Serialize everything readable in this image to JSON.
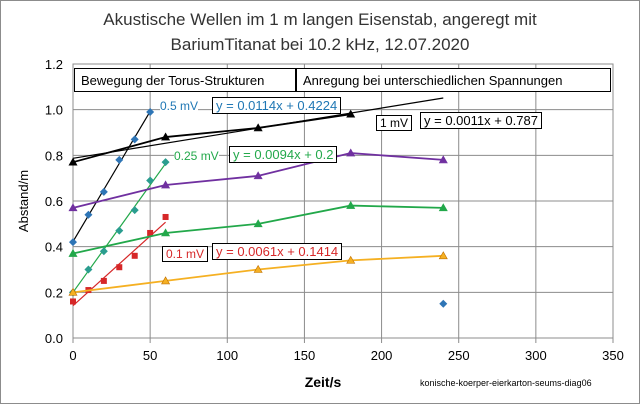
{
  "colors": {
    "mv05": "#1f77b4",
    "mv025": "#2a9d8f",
    "mv01": "#d62728",
    "purple": "#7030a0",
    "green": "#22a84a",
    "orange": "#f5b022",
    "black": "#000000",
    "blue_diamond": "#2e75b6"
  },
  "chart_data": {
    "type": "scatter",
    "title": "Akustische Wellen im 1 m langen  Eisenstab, angeregt mit",
    "subtitle": "BariumTitanat  bei 10.2 kHz, 12.07.2020",
    "xlabel": "Zeit/s",
    "ylabel": "Abstand/m",
    "xlim": [
      0,
      350
    ],
    "ylim": [
      0,
      1.2
    ],
    "xticks": [
      "0",
      "50",
      "100",
      "150",
      "200",
      "250",
      "300",
      "350"
    ],
    "yticks": [
      "0.0",
      "0.2",
      "0.4",
      "0.6",
      "0.8",
      "1.0",
      "1.2"
    ],
    "grid": true,
    "footnote": "konische-koerper-eierkarton-seums-diag06",
    "box_left": "Bewegung der Torus-Strukturen",
    "box_right": "Anregung  bei unterschiedlichen Spannungen",
    "series": [
      {
        "color_key": "blue_diamond",
        "marker": "diamond",
        "x": [
          0,
          10,
          20,
          30,
          40,
          50
        ],
        "y": [
          0.42,
          0.54,
          0.64,
          0.78,
          0.87,
          0.99
        ]
      },
      {
        "color_key": "mv025",
        "marker": "diamond",
        "x": [
          0,
          10,
          20,
          30,
          40,
          50,
          60
        ],
        "y": [
          0.2,
          0.3,
          0.38,
          0.47,
          0.56,
          0.69,
          0.77
        ]
      },
      {
        "color_key": "mv01",
        "marker": "square",
        "x": [
          0,
          10,
          20,
          30,
          40,
          50,
          60
        ],
        "y": [
          0.16,
          0.21,
          0.25,
          0.31,
          0.36,
          0.46,
          0.53
        ]
      },
      {
        "color_key": "black",
        "marker": "triangle",
        "line": true,
        "x": [
          0,
          60,
          120,
          180
        ],
        "y": [
          0.77,
          0.88,
          0.92,
          0.98
        ]
      },
      {
        "color_key": "purple",
        "marker": "triangle",
        "line": true,
        "x": [
          0,
          60,
          120,
          180,
          240
        ],
        "y": [
          0.57,
          0.67,
          0.71,
          0.81,
          0.78
        ]
      },
      {
        "color_key": "green",
        "marker": "triangle",
        "line": true,
        "x": [
          0,
          60,
          120,
          180,
          240
        ],
        "y": [
          0.37,
          0.46,
          0.5,
          0.58,
          0.57
        ]
      },
      {
        "color_key": "orange",
        "marker": "triangle",
        "line": true,
        "x": [
          0,
          60,
          120,
          180,
          240
        ],
        "y": [
          0.2,
          0.25,
          0.3,
          0.34,
          0.36
        ]
      },
      {
        "color_key": "blue_diamond",
        "marker": "diamond",
        "x": [
          240
        ],
        "y": [
          0.15
        ]
      }
    ],
    "fits": [
      {
        "color_key": "black",
        "slope": 0.0114,
        "intercept": 0.4224,
        "x": [
          0,
          50
        ]
      },
      {
        "color_key": "green",
        "slope": 0.0094,
        "intercept": 0.2,
        "x": [
          0,
          60
        ]
      },
      {
        "color_key": "mv01",
        "slope": 0.0061,
        "intercept": 0.1414,
        "x": [
          0,
          60
        ]
      },
      {
        "color_key": "black",
        "slope": 0.0011,
        "intercept": 0.787,
        "x": [
          0,
          240
        ]
      }
    ],
    "annotations": [
      {
        "key": "mv05",
        "label": "0.5 mV",
        "eq": "y = 0.0114x + 0.4224",
        "color_key": "mv05"
      },
      {
        "key": "mv025",
        "label": "0.25 mV",
        "eq": "y = 0.0094x + 0.2",
        "color_key": "green"
      },
      {
        "key": "mv01",
        "label": "0.1 mV",
        "eq": "y = 0.0061x + 0.1414",
        "color_key": "mv01"
      },
      {
        "key": "mv1",
        "label": "1 mV",
        "eq": "y = 0.0011x + 0.787",
        "color_key": "black"
      }
    ]
  }
}
